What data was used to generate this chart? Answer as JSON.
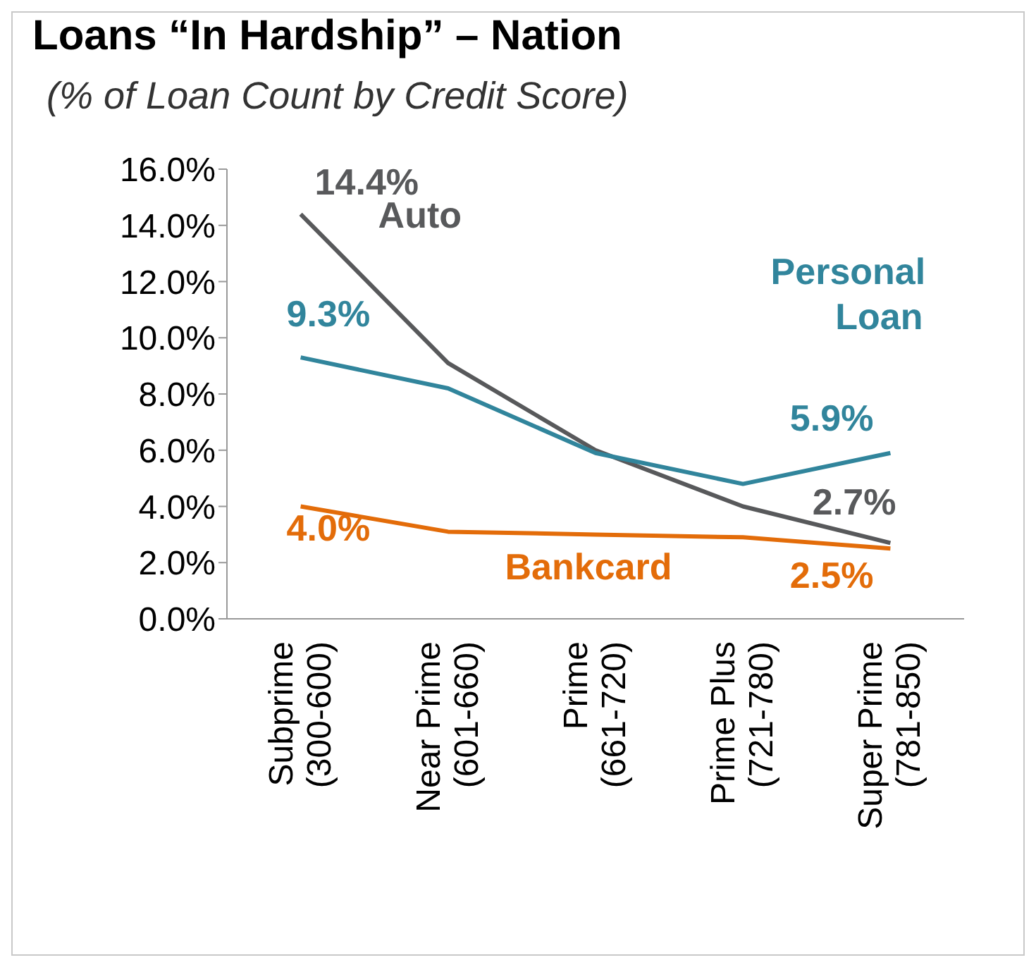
{
  "chart_data": {
    "type": "line",
    "title": "Loans “In Hardship” – Nation",
    "subtitle": "(% of Loan Count by Credit Score)",
    "categories": [
      "Subprime (300-600)",
      "Near Prime (601-660)",
      "Prime (661-720)",
      "Prime Plus (721-780)",
      "Super Prime (781-850)"
    ],
    "series": [
      {
        "name": "Auto",
        "color": "#58595b",
        "values": [
          14.4,
          9.1,
          6.0,
          4.0,
          2.7
        ],
        "value_labels": [
          "14.4%",
          null,
          null,
          null,
          "2.7%"
        ]
      },
      {
        "name": "Personal Loan",
        "color": "#31859c",
        "values": [
          9.3,
          8.2,
          5.9,
          4.8,
          5.9
        ],
        "value_labels": [
          "9.3%",
          null,
          null,
          null,
          "5.9%"
        ]
      },
      {
        "name": "Bankcard",
        "color": "#e36c09",
        "values": [
          4.0,
          3.1,
          3.0,
          2.9,
          2.5
        ],
        "value_labels": [
          "4.0%",
          null,
          null,
          null,
          "2.5%"
        ]
      }
    ],
    "ylim": [
      0,
      16
    ],
    "yticks": [
      {
        "value": 0,
        "label": "0.0%"
      },
      {
        "value": 2,
        "label": "2.0%"
      },
      {
        "value": 4,
        "label": "4.0%"
      },
      {
        "value": 6,
        "label": "6.0%"
      },
      {
        "value": 8,
        "label": "8.0%"
      },
      {
        "value": 10,
        "label": "10.0%"
      },
      {
        "value": 12,
        "label": "12.0%"
      },
      {
        "value": 14,
        "label": "14.0%"
      },
      {
        "value": 16,
        "label": "16.0%"
      }
    ],
    "grid": false,
    "marker": "none",
    "line_style": "solid"
  }
}
